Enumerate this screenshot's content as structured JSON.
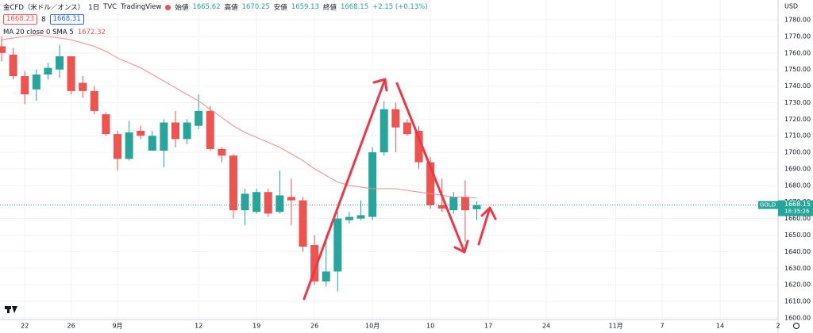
{
  "header": {
    "symbol": "金CFD（米ドル／オンス）",
    "interval": "1日",
    "source": "TVC",
    "brand": "TradingView",
    "labels": {
      "open": "始値",
      "high": "高値",
      "low": "安値",
      "close": "終値"
    },
    "change": "+2.15 (+0.13%)"
  },
  "quote": {
    "bid": 1668.23,
    "spread": 8,
    "ask": 1668.31
  },
  "price_axis": {
    "currency": "USD",
    "tag": "GOLD",
    "countdown": "18:35:26"
  },
  "chart_data": {
    "type": "candlestick",
    "up_color": "#26a69a",
    "down_color": "#ef5350",
    "candles": {
      "open": [
        1764,
        1759,
        1746,
        1738,
        1747,
        1750,
        1758,
        1742,
        1737,
        1723,
        1711,
        1696,
        1713,
        1701,
        1701,
        1718,
        1708,
        1716,
        1725,
        1702,
        1698,
        1665,
        1664,
        1676,
        1664,
        1673,
        1671,
        1644,
        1622,
        1628,
        1659,
        1660,
        1661,
        1700,
        1726,
        1718,
        1713,
        1694,
        1668,
        1665,
        1673,
        1665.62
      ],
      "high": [
        1770,
        1763,
        1749,
        1750,
        1754,
        1765,
        1758,
        1746,
        1740,
        1724,
        1713,
        1719,
        1716,
        1713,
        1720,
        1725,
        1720,
        1735,
        1728,
        1703,
        1699,
        1678,
        1678,
        1678,
        1689,
        1684,
        1673,
        1650,
        1650,
        1664,
        1664,
        1671,
        1703,
        1731,
        1730,
        1720,
        1716,
        1697,
        1684,
        1676,
        1683,
        1670.25
      ],
      "low": [
        1755,
        1744,
        1729,
        1731,
        1744,
        1745,
        1735,
        1733,
        1723,
        1710,
        1689,
        1695,
        1708,
        1701,
        1691,
        1703,
        1705,
        1714,
        1701,
        1694,
        1660,
        1656,
        1663,
        1661,
        1663,
        1656,
        1640,
        1620,
        1619,
        1616,
        1657,
        1659,
        1659,
        1698,
        1700,
        1710,
        1690,
        1666,
        1664,
        1663,
        1646,
        1659.13
      ],
      "close": [
        1760,
        1746,
        1735,
        1747,
        1751,
        1758,
        1737,
        1737,
        1725,
        1711,
        1696,
        1712,
        1710,
        1710,
        1718,
        1708,
        1718,
        1725,
        1702,
        1698,
        1665,
        1675,
        1676,
        1663,
        1674,
        1671,
        1643,
        1622,
        1628,
        1660,
        1661,
        1662,
        1700,
        1726,
        1715,
        1711,
        1694,
        1668,
        1666,
        1673,
        1665,
        1668.15
      ]
    },
    "ma": {
      "name": "MA 20 close 0 SMA 5",
      "color": "#f28b8b",
      "values": [
        1768,
        1769,
        1770,
        1771,
        1770,
        1769,
        1768,
        1766,
        1764,
        1761,
        1757,
        1754,
        1751,
        1747,
        1743,
        1739,
        1735,
        1731,
        1726,
        1721,
        1716,
        1712,
        1709,
        1706,
        1703,
        1699,
        1695,
        1690,
        1686,
        1682,
        1680,
        1679,
        1678,
        1678,
        1678,
        1677,
        1676,
        1675,
        1674,
        1673,
        1673,
        1672.32
      ]
    },
    "xlim": [
      -0.14,
      67
    ],
    "xticks": [
      {
        "value": 2,
        "label": "22"
      },
      {
        "value": 6,
        "label": "26"
      },
      {
        "value": 10,
        "label": "9月"
      },
      {
        "value": 17,
        "label": "12"
      },
      {
        "value": 22,
        "label": "19"
      },
      {
        "value": 27,
        "label": "26"
      },
      {
        "value": 32,
        "label": "10月"
      },
      {
        "value": 37,
        "label": "10"
      },
      {
        "value": 42,
        "label": "17"
      },
      {
        "value": 47,
        "label": "24"
      },
      {
        "value": 53,
        "label": "11月"
      },
      {
        "value": 57,
        "label": "7"
      },
      {
        "value": 62,
        "label": "14"
      },
      {
        "value": 67,
        "label": "2"
      }
    ],
    "ylim": [
      1599,
      1792
    ],
    "yticks": [
      {
        "value": 1600,
        "label": "1600.00"
      },
      {
        "value": 1610,
        "label": "1610.00"
      },
      {
        "value": 1620,
        "label": "1620.00"
      },
      {
        "value": 1630,
        "label": "1630.00"
      },
      {
        "value": 1640,
        "label": "1640.00"
      },
      {
        "value": 1650,
        "label": "1650.00"
      },
      {
        "value": 1660,
        "label": "1660.00"
      },
      {
        "value": 1670,
        "label": "1670.00"
      },
      {
        "value": 1680,
        "label": "1680.00"
      },
      {
        "value": 1690,
        "label": "1690.00"
      },
      {
        "value": 1700,
        "label": "1700.00"
      },
      {
        "value": 1710,
        "label": "1710.00"
      },
      {
        "value": 1720,
        "label": "1720.00"
      },
      {
        "value": 1730,
        "label": "1730.00"
      },
      {
        "value": 1740,
        "label": "1740.00"
      },
      {
        "value": 1750,
        "label": "1750.00"
      },
      {
        "value": 1760,
        "label": "1760.00"
      },
      {
        "value": 1770,
        "label": "1770.00"
      },
      {
        "value": 1780,
        "label": "1780.00"
      }
    ],
    "grid": true
  }
}
